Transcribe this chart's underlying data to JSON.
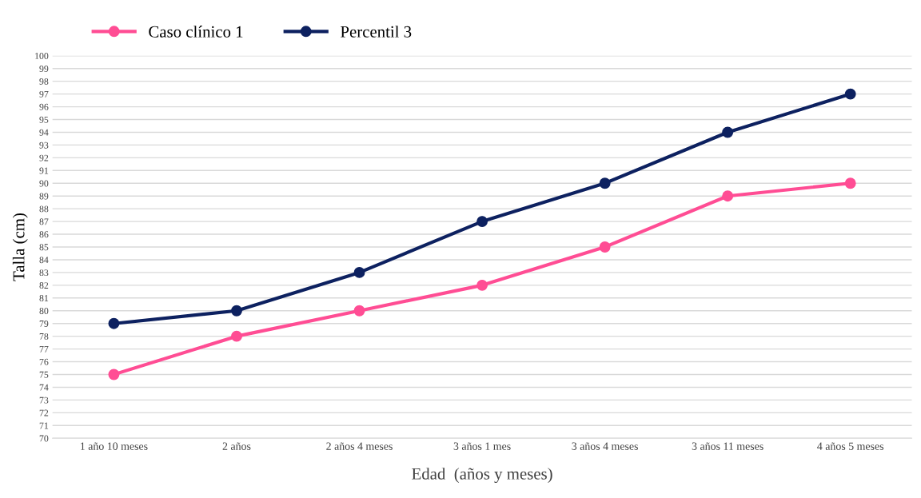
{
  "chart_data": {
    "type": "line",
    "xlabel": "Edad  (años y meses)",
    "ylabel": "Talla (cm)",
    "categories": [
      "1 año 10 meses",
      "2 años",
      "2 años 4 meses",
      "3 años 1 mes",
      "3 años 4 meses",
      "3 años 11 meses",
      "4 años 5 meses"
    ],
    "series": [
      {
        "name": "Caso clínico 1",
        "color": "#ff4d94",
        "values": [
          75,
          78,
          80,
          82,
          85,
          89,
          90
        ]
      },
      {
        "name": "Percentil 3",
        "color": "#0d2160",
        "values": [
          79,
          80,
          83,
          87,
          90,
          94,
          97
        ]
      }
    ],
    "ylim": [
      70,
      100
    ],
    "yticks": [
      70,
      71,
      72,
      73,
      74,
      75,
      76,
      77,
      78,
      79,
      80,
      81,
      82,
      83,
      84,
      85,
      86,
      87,
      88,
      89,
      90,
      91,
      92,
      93,
      94,
      95,
      96,
      97,
      98,
      99,
      100
    ],
    "grid": "y",
    "legend": "top left",
    "marker": "circle",
    "line_style": "solid"
  }
}
